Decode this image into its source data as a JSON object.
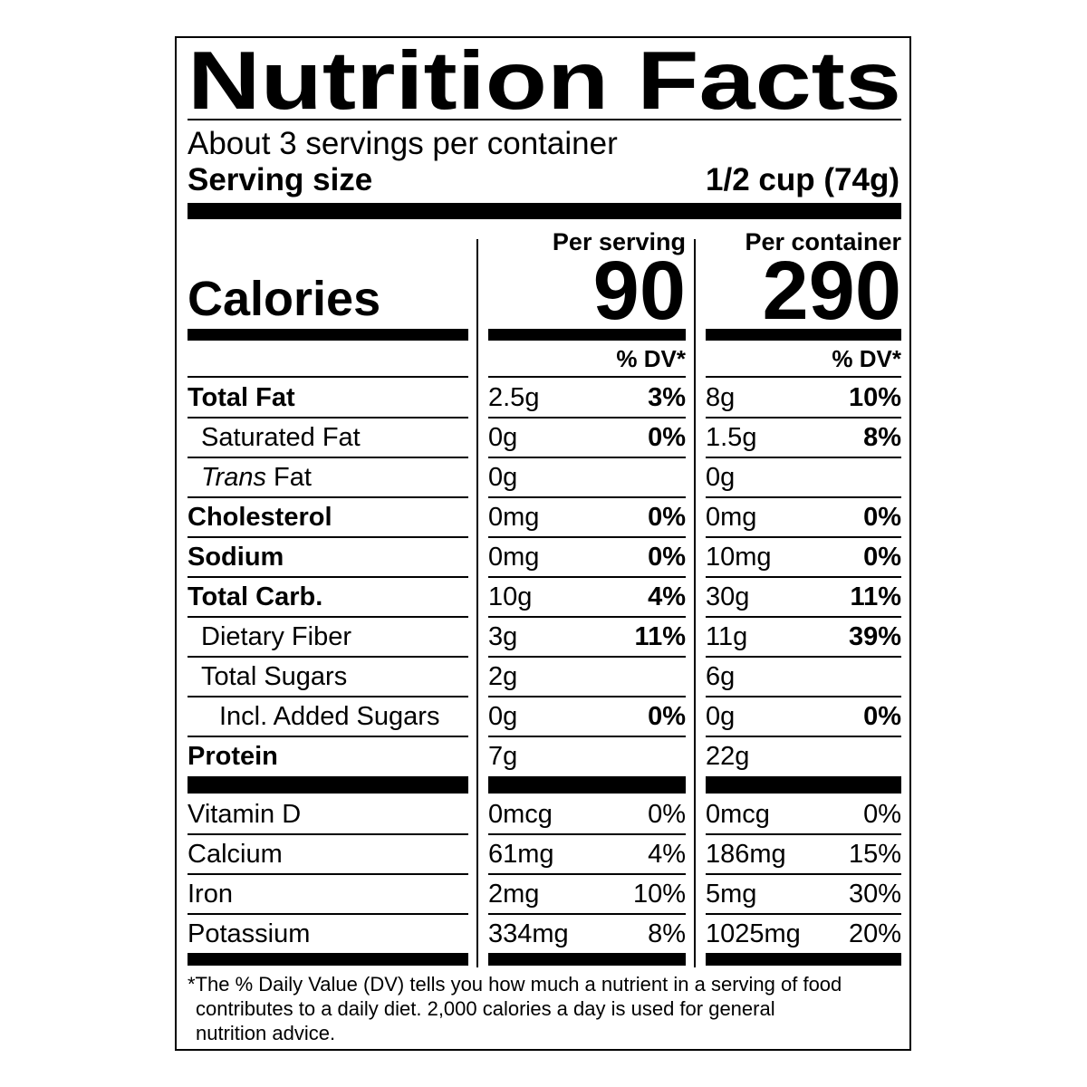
{
  "header": {
    "title": "Nutrition Facts",
    "servings": "About 3 servings per container",
    "serving_size_label": "Serving size",
    "serving_size": "1/2 cup (74g)"
  },
  "columns": [
    "Per serving",
    "Per container"
  ],
  "calories": {
    "label": "Calories",
    "values": [
      "90",
      "290"
    ]
  },
  "dv_header": "% DV*",
  "nutrients": [
    {
      "name": "Total Fat",
      "per_serving": [
        "2.5g",
        "3%"
      ],
      "per_container": [
        "8g",
        "10%"
      ]
    },
    {
      "name": "Saturated Fat",
      "per_serving": [
        "0g",
        "0%"
      ],
      "per_container": [
        "1.5g",
        "8%"
      ]
    },
    {
      "name_italic": "Trans",
      "name": "Fat",
      "per_serving": [
        "0g",
        null
      ],
      "per_container": [
        "0g",
        null
      ]
    },
    {
      "name": "Cholesterol",
      "per_serving": [
        "0mg",
        "0%"
      ],
      "per_container": [
        "0mg",
        "0%"
      ]
    },
    {
      "name": "Sodium",
      "per_serving": [
        "0mg",
        "0%"
      ],
      "per_container": [
        "10mg",
        "0%"
      ]
    },
    {
      "name": "Total Carb.",
      "per_serving": [
        "10g",
        "4%"
      ],
      "per_container": [
        "30g",
        "11%"
      ]
    },
    {
      "name": "Dietary Fiber",
      "per_serving": [
        "3g",
        "11%"
      ],
      "per_container": [
        "11g",
        "39%"
      ]
    },
    {
      "name": "Total Sugars",
      "per_serving": [
        "2g",
        null
      ],
      "per_container": [
        "6g",
        null
      ]
    },
    {
      "name": "Incl. Added Sugars",
      "per_serving": [
        "0g",
        "0%"
      ],
      "per_container": [
        "0g",
        "0%"
      ]
    },
    {
      "name": "Protein",
      "per_serving": [
        "7g",
        null
      ],
      "per_container": [
        "22g",
        null
      ]
    }
  ],
  "vitamins": [
    {
      "name": "Vitamin D",
      "per_serving": [
        "0mcg",
        "0%"
      ],
      "per_container": [
        "0mcg",
        "0%"
      ]
    },
    {
      "name": "Calcium",
      "per_serving": [
        "61mg",
        "4%"
      ],
      "per_container": [
        "186mg",
        "15%"
      ]
    },
    {
      "name": "Iron",
      "per_serving": [
        "2mg",
        "10%"
      ],
      "per_container": [
        "5mg",
        "30%"
      ]
    },
    {
      "name": "Potassium",
      "per_serving": [
        "334mg",
        "8%"
      ],
      "per_container": [
        "1025mg",
        "20%"
      ]
    }
  ],
  "footnote": [
    "*The % Daily Value (DV) tells you how much a nutrient in a serving of food",
    "contributes to a daily diet. 2,000 calories a day is used for general",
    "nutrition advice."
  ]
}
